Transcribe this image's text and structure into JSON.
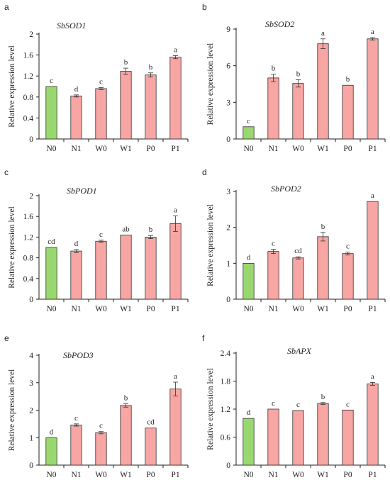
{
  "chart_data": [
    {
      "type": "bar",
      "panel": "a",
      "title": "SbSOD1",
      "ylabel": "Relative expression level",
      "xlabel": "",
      "ylim": [
        0,
        2
      ],
      "yticks": [
        "0",
        "0.4",
        "0.8",
        "1.2",
        "1.6",
        "2"
      ],
      "categories": [
        "N0",
        "N1",
        "W0",
        "W1",
        "P0",
        "P1"
      ],
      "values": [
        1.0,
        0.82,
        0.96,
        1.29,
        1.22,
        1.56
      ],
      "errors": [
        0.0,
        0.02,
        0.02,
        0.06,
        0.04,
        0.03
      ],
      "significance": [
        "c",
        "d",
        "c",
        "b",
        "b",
        "a"
      ]
    },
    {
      "type": "bar",
      "panel": "b",
      "title": "SbSOD2",
      "ylabel": "Relative expression level",
      "xlabel": "",
      "ylim": [
        0,
        9
      ],
      "yticks": [
        "0",
        "3",
        "6",
        "9"
      ],
      "categories": [
        "N0",
        "N1",
        "W0",
        "W1",
        "P0",
        "P1"
      ],
      "values": [
        1.0,
        5.0,
        4.55,
        7.8,
        4.4,
        8.2
      ],
      "errors": [
        0.0,
        0.3,
        0.3,
        0.4,
        0.0,
        0.1
      ],
      "significance": [
        "c",
        "b",
        "b",
        "a",
        "b",
        "a"
      ]
    },
    {
      "type": "bar",
      "panel": "c",
      "title": "SbPOD1",
      "ylabel": "Relative expression level",
      "xlabel": "",
      "ylim": [
        0,
        2
      ],
      "yticks": [
        "0",
        "0.4",
        "0.8",
        "1.2",
        "1.6",
        "2"
      ],
      "categories": [
        "N0",
        "N1",
        "W0",
        "W1",
        "P0",
        "P1"
      ],
      "values": [
        1.0,
        0.93,
        1.12,
        1.24,
        1.2,
        1.46
      ],
      "errors": [
        0.0,
        0.03,
        0.02,
        0.0,
        0.03,
        0.15
      ],
      "significance": [
        "cd",
        "d",
        "c",
        "ab",
        "b",
        "a"
      ]
    },
    {
      "type": "bar",
      "panel": "d",
      "title": "SbPOD2",
      "ylabel": "Relative expression level",
      "xlabel": "",
      "ylim": [
        0,
        3
      ],
      "yticks": [
        "0",
        "1",
        "2",
        "3"
      ],
      "categories": [
        "N0",
        "N1",
        "W0",
        "W1",
        "P0",
        "P1"
      ],
      "values": [
        1.0,
        1.33,
        1.15,
        1.74,
        1.27,
        2.72
      ],
      "errors": [
        0.0,
        0.06,
        0.03,
        0.12,
        0.04,
        0.0
      ],
      "significance": [
        "d",
        "c",
        "cd",
        "b",
        "c",
        "a"
      ]
    },
    {
      "type": "bar",
      "panel": "e",
      "title": "SbPOD3",
      "ylabel": "Relative expression level",
      "xlabel": "",
      "ylim": [
        0,
        4
      ],
      "yticks": [
        "0",
        "1",
        "2",
        "3",
        "4"
      ],
      "categories": [
        "N0",
        "N1",
        "W0",
        "W1",
        "P0",
        "P1"
      ],
      "values": [
        1.0,
        1.46,
        1.18,
        2.17,
        1.35,
        2.77
      ],
      "errors": [
        0.0,
        0.04,
        0.04,
        0.06,
        0.0,
        0.25
      ],
      "significance": [
        "d",
        "c",
        "c",
        "b",
        "cd",
        "a"
      ]
    },
    {
      "type": "bar",
      "panel": "f",
      "title": "SbAPX",
      "ylabel": "Relative expression level",
      "xlabel": "",
      "ylim": [
        0,
        2.4
      ],
      "yticks": [
        "0",
        "0.6",
        "1.2",
        "1.8",
        "2.4"
      ],
      "categories": [
        "N0",
        "N1",
        "W0",
        "W1",
        "P0",
        "P1"
      ],
      "values": [
        1.0,
        1.2,
        1.17,
        1.32,
        1.18,
        1.74
      ],
      "errors": [
        0.0,
        0.0,
        0.0,
        0.02,
        0.0,
        0.03
      ],
      "significance": [
        "d",
        "c",
        "c",
        "b",
        "c",
        "a"
      ]
    }
  ],
  "colors": {
    "control_bar": "#99d86f",
    "treatment_bar": "#f7a6a3",
    "axis": "#222222"
  }
}
